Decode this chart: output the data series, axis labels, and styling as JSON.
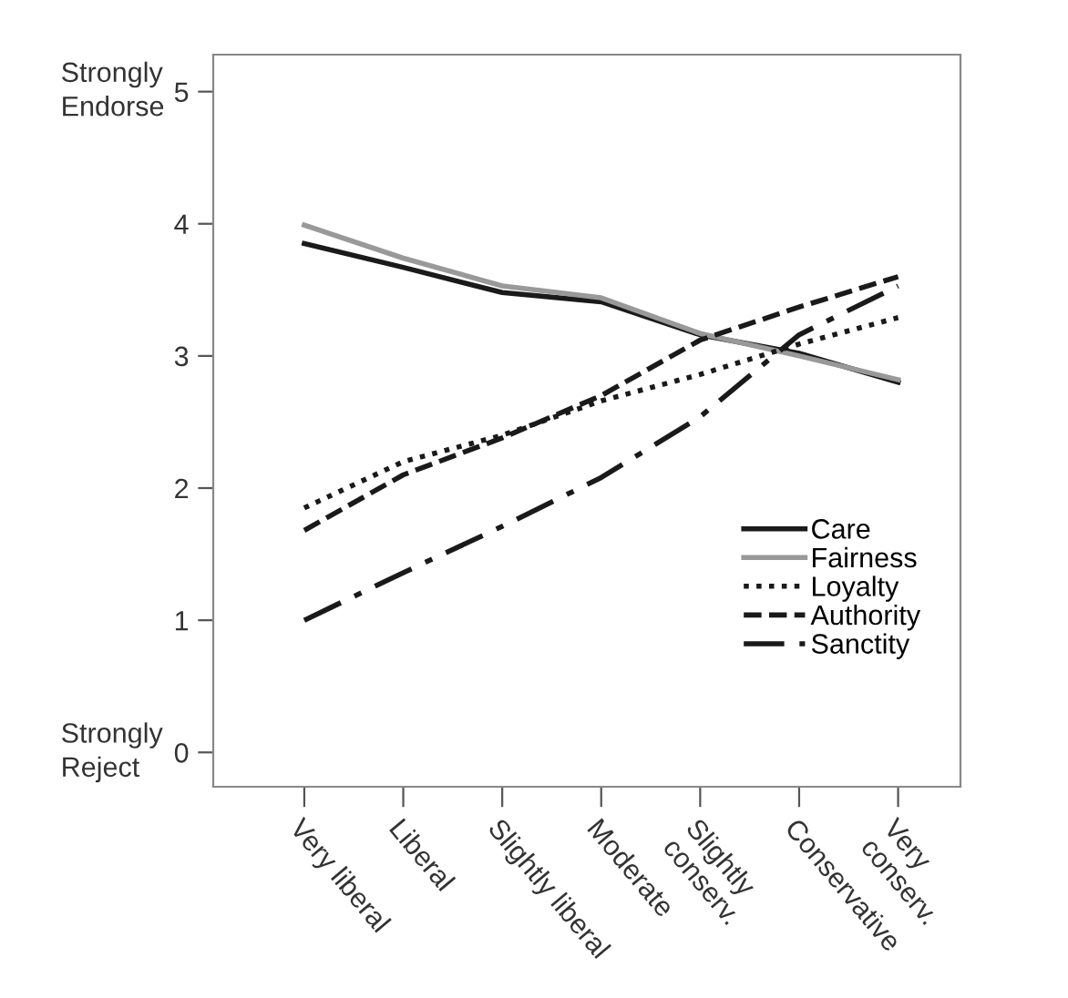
{
  "chart_data": {
    "type": "line",
    "categories": [
      "Very liberal",
      "Liberal",
      "Slightly liberal",
      "Moderate",
      "Slightly\nconserv.",
      "Conservative",
      "Very\nconserv."
    ],
    "series": [
      {
        "name": "Care",
        "color": "#1a1a1a",
        "line_style": "solid",
        "values": [
          3.85,
          3.67,
          3.48,
          3.41,
          3.16,
          3.02,
          2.8
        ]
      },
      {
        "name": "Fairness",
        "color": "#999999",
        "line_style": "solid",
        "values": [
          3.99,
          3.74,
          3.53,
          3.44,
          3.17,
          3.0,
          2.82
        ]
      },
      {
        "name": "Loyalty",
        "color": "#1a1a1a",
        "line_style": "dotted",
        "values": [
          1.85,
          2.2,
          2.4,
          2.66,
          2.86,
          3.09,
          3.29
        ]
      },
      {
        "name": "Authority",
        "color": "#1a1a1a",
        "line_style": "dashed",
        "values": [
          1.68,
          2.1,
          2.38,
          2.7,
          3.12,
          3.37,
          3.6
        ]
      },
      {
        "name": "Sanctity",
        "color": "#1a1a1a",
        "line_style": "dashdot",
        "values": [
          1.0,
          1.36,
          1.71,
          2.08,
          2.54,
          3.16,
          3.53
        ]
      }
    ],
    "ylim": [
      -0.26,
      5.28
    ],
    "yticks": [
      0,
      1,
      2,
      3,
      4,
      5
    ],
    "annotations": [
      "Strongly\nEndorse",
      "Strongly\nReject"
    ],
    "grid": false,
    "legend": "bottom right",
    "marker": "none"
  }
}
